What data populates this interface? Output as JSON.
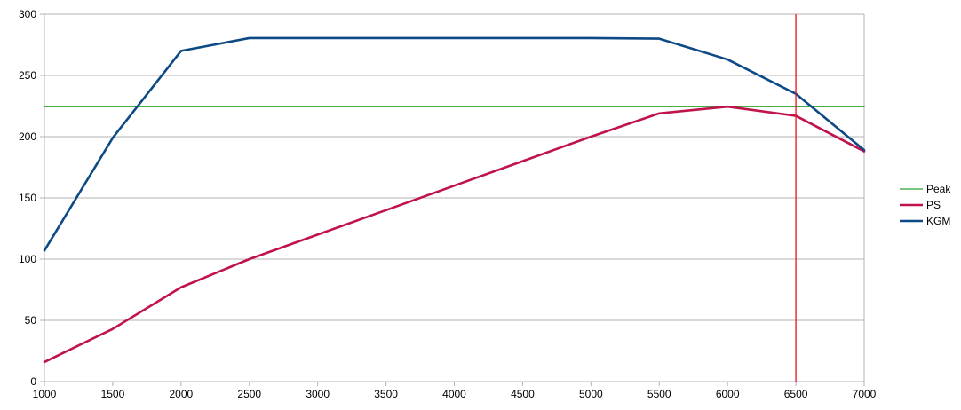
{
  "chart_data": {
    "type": "line",
    "title": "",
    "xlabel": "",
    "ylabel": "",
    "x": [
      1000,
      1500,
      2000,
      2500,
      3000,
      3500,
      4000,
      4500,
      5000,
      5500,
      6000,
      6500,
      7000
    ],
    "xlim": [
      1000,
      7000
    ],
    "ylim": [
      0,
      300
    ],
    "x_ticks": [
      "1000",
      "1500",
      "2000",
      "2500",
      "3000",
      "3500",
      "4000",
      "4500",
      "5000",
      "5500",
      "6000",
      "6500",
      "7000"
    ],
    "y_ticks": [
      "0",
      "50",
      "100",
      "150",
      "200",
      "250",
      "300"
    ],
    "grid": "horizontal",
    "legend": "right",
    "series": [
      {
        "name": "Peak",
        "color": "#2ca02c",
        "values": [
          224.5,
          224.5,
          224.5,
          224.5,
          224.5,
          224.5,
          224.5,
          224.5,
          224.5,
          224.5,
          224.5,
          224.5,
          224.5
        ]
      },
      {
        "name": "PS",
        "color": "#c0134d",
        "values": [
          16,
          43,
          77,
          100,
          120,
          140,
          160,
          180,
          200,
          219,
          224.5,
          217,
          188
        ]
      },
      {
        "name": "KGM",
        "color": "#0d4a85",
        "values": [
          107,
          199,
          270,
          280.5,
          280.5,
          280.5,
          280.5,
          280.5,
          280.5,
          280,
          263,
          235,
          189
        ]
      }
    ],
    "vertical_marker": {
      "x": 6500,
      "color": "#e8131a"
    }
  }
}
